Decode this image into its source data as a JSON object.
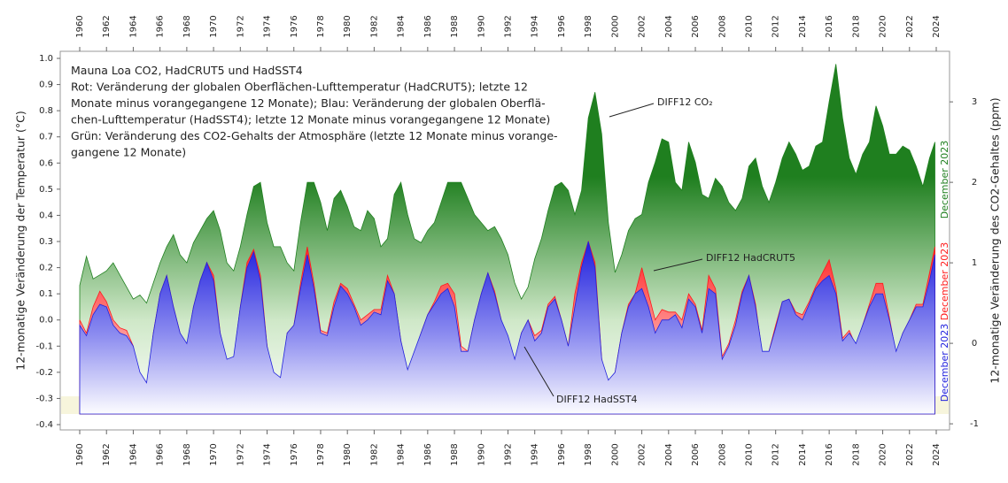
{
  "chart_data": {
    "type": "area",
    "notes": [
      "Mauna Loa CO2, HadCRUT5 und HadSST4",
      "Rot: Veränderung der globalen Oberflächen-Lufttemperatur (HadCRUT5); letzte 12",
      "Monate minus vorangegangene 12 Monate); Blau: Veränderung der globalen Oberflä-",
      "chen-Lufttemperatur (HadSST4); letzte 12 Monate minus vorangegangene 12 Monate)",
      "Grün: Veränderung des CO2-Gehalts der Atmosphäre (letzte 12 Monate minus vorange-",
      "gangene 12 Monate)"
    ],
    "ylabel": "12-monatige Veränderung der Temperatur (°C)",
    "y2label": "12-monatige Veränderung des CO2-Gehaltes (ppm)",
    "x": [
      1960,
      1960.5,
      1961,
      1961.5,
      1962,
      1962.5,
      1963,
      1963.5,
      1964,
      1964.5,
      1965,
      1965.5,
      1966,
      1966.5,
      1967,
      1967.5,
      1968,
      1968.5,
      1969,
      1969.5,
      1970,
      1970.5,
      1971,
      1971.5,
      1972,
      1972.5,
      1973,
      1973.5,
      1974,
      1974.5,
      1975,
      1975.5,
      1976,
      1976.5,
      1977,
      1977.5,
      1978,
      1978.5,
      1979,
      1979.5,
      1980,
      1980.5,
      1981,
      1981.5,
      1982,
      1982.5,
      1983,
      1983.5,
      1984,
      1984.5,
      1985,
      1985.5,
      1986,
      1986.5,
      1987,
      1987.5,
      1988,
      1988.5,
      1989,
      1989.5,
      1990,
      1990.5,
      1991,
      1991.5,
      1992,
      1992.5,
      1993,
      1993.5,
      1994,
      1994.5,
      1995,
      1995.5,
      1996,
      1996.5,
      1997,
      1997.5,
      1998,
      1998.5,
      1999,
      1999.5,
      2000,
      2000.5,
      2001,
      2001.5,
      2002,
      2002.5,
      2003,
      2003.5,
      2004,
      2004.5,
      2005,
      2005.5,
      2006,
      2006.5,
      2007,
      2007.5,
      2008,
      2008.5,
      2009,
      2009.5,
      2010,
      2010.5,
      2011,
      2011.5,
      2012,
      2012.5,
      2013,
      2013.5,
      2014,
      2014.5,
      2015,
      2015.5,
      2016,
      2016.5,
      2017,
      2017.5,
      2018,
      2018.5,
      2019,
      2019.5,
      2020,
      2020.5,
      2021,
      2021.5,
      2022,
      2022.5,
      2023,
      2023.5,
      2023.9
    ],
    "series": [
      {
        "name": "DIFF12 CO₂",
        "end_label": "December 2023",
        "color": "#1f7f1f",
        "axis": "y2",
        "values": [
          0.72,
          1.08,
          0.8,
          0.85,
          0.9,
          1.0,
          0.85,
          0.7,
          0.55,
          0.6,
          0.5,
          0.75,
          1.0,
          1.2,
          1.35,
          1.1,
          1.0,
          1.25,
          1.4,
          1.55,
          1.65,
          1.4,
          1.0,
          0.9,
          1.2,
          1.6,
          1.95,
          2.0,
          1.5,
          1.2,
          1.2,
          1.0,
          0.9,
          1.5,
          2.0,
          2.0,
          1.75,
          1.4,
          1.8,
          1.9,
          1.7,
          1.45,
          1.4,
          1.65,
          1.55,
          1.2,
          1.3,
          1.85,
          2.0,
          1.6,
          1.3,
          1.25,
          1.4,
          1.5,
          1.75,
          2.0,
          2.0,
          2.0,
          1.8,
          1.6,
          1.5,
          1.4,
          1.45,
          1.3,
          1.1,
          0.75,
          0.55,
          0.7,
          1.05,
          1.3,
          1.65,
          1.95,
          2.0,
          1.9,
          1.6,
          1.9,
          2.8,
          3.12,
          2.6,
          1.5,
          0.88,
          1.1,
          1.4,
          1.55,
          1.6,
          2.0,
          2.25,
          2.54,
          2.5,
          2.0,
          1.9,
          2.5,
          2.25,
          1.85,
          1.8,
          2.05,
          1.95,
          1.75,
          1.65,
          1.8,
          2.2,
          2.3,
          1.95,
          1.75,
          2.0,
          2.3,
          2.5,
          2.35,
          2.15,
          2.2,
          2.45,
          2.5,
          3.0,
          3.47,
          2.8,
          2.3,
          2.1,
          2.35,
          2.5,
          2.95,
          2.7,
          2.35,
          2.35,
          2.45,
          2.4,
          2.2,
          1.95,
          2.3,
          2.5
        ]
      },
      {
        "name": "DIFF12 HadCRUT5",
        "end_label": "December 2023",
        "color": "#ff1a1a",
        "values": [
          0.0,
          -0.05,
          0.05,
          0.11,
          0.07,
          0.0,
          -0.03,
          -0.04,
          -0.1,
          -0.24,
          -0.27,
          -0.05,
          0.1,
          0.17,
          0.05,
          -0.05,
          -0.1,
          0.05,
          0.15,
          0.22,
          0.17,
          -0.05,
          -0.16,
          -0.15,
          0.05,
          0.22,
          0.27,
          0.17,
          -0.1,
          -0.22,
          -0.27,
          -0.05,
          -0.02,
          0.14,
          0.28,
          0.14,
          -0.04,
          -0.05,
          0.07,
          0.14,
          0.12,
          0.06,
          0.0,
          0.02,
          0.04,
          0.04,
          0.17,
          0.1,
          -0.08,
          -0.2,
          -0.13,
          -0.05,
          0.02,
          0.07,
          0.13,
          0.14,
          0.1,
          -0.1,
          -0.12,
          0.0,
          0.1,
          0.18,
          0.11,
          0.0,
          -0.08,
          -0.16,
          -0.05,
          0.0,
          -0.06,
          -0.04,
          0.06,
          0.09,
          0.0,
          -0.1,
          0.1,
          0.22,
          0.3,
          0.22,
          -0.15,
          -0.25,
          -0.2,
          -0.05,
          0.06,
          0.1,
          0.2,
          0.1,
          0.0,
          0.04,
          0.03,
          0.03,
          0.0,
          0.1,
          0.06,
          -0.04,
          0.17,
          0.12,
          -0.14,
          -0.09,
          0.0,
          0.11,
          0.17,
          0.06,
          -0.13,
          -0.12,
          -0.02,
          0.07,
          0.08,
          0.03,
          0.02,
          0.07,
          0.13,
          0.18,
          0.23,
          0.12,
          -0.07,
          -0.04,
          -0.1,
          -0.02,
          0.06,
          0.14,
          0.14,
          0.01,
          -0.13,
          -0.05,
          0.0,
          0.06,
          0.06,
          0.18,
          0.28
        ]
      },
      {
        "name": "DIFF12 HadSST4",
        "end_label": "December 2023",
        "color": "#2222dd",
        "values": [
          -0.02,
          -0.06,
          0.02,
          0.06,
          0.05,
          -0.02,
          -0.05,
          -0.06,
          -0.1,
          -0.2,
          -0.24,
          -0.05,
          0.1,
          0.17,
          0.05,
          -0.05,
          -0.09,
          0.05,
          0.15,
          0.22,
          0.15,
          -0.05,
          -0.15,
          -0.14,
          0.05,
          0.2,
          0.26,
          0.15,
          -0.1,
          -0.2,
          -0.22,
          -0.05,
          -0.02,
          0.12,
          0.25,
          0.12,
          -0.05,
          -0.06,
          0.05,
          0.13,
          0.1,
          0.05,
          -0.02,
          0.0,
          0.03,
          0.02,
          0.15,
          0.1,
          -0.08,
          -0.19,
          -0.12,
          -0.05,
          0.02,
          0.06,
          0.1,
          0.12,
          0.05,
          -0.12,
          -0.12,
          0.0,
          0.1,
          0.18,
          0.1,
          0.0,
          -0.06,
          -0.15,
          -0.05,
          0.0,
          -0.08,
          -0.05,
          0.05,
          0.08,
          0.0,
          -0.1,
          0.05,
          0.2,
          0.3,
          0.2,
          -0.15,
          -0.23,
          -0.2,
          -0.05,
          0.05,
          0.1,
          0.12,
          0.05,
          -0.05,
          0.0,
          0.0,
          0.02,
          -0.03,
          0.08,
          0.05,
          -0.05,
          0.12,
          0.1,
          -0.15,
          -0.1,
          -0.02,
          0.1,
          0.17,
          0.05,
          -0.12,
          -0.12,
          -0.03,
          0.07,
          0.08,
          0.02,
          0.0,
          0.06,
          0.12,
          0.15,
          0.17,
          0.1,
          -0.08,
          -0.05,
          -0.09,
          -0.02,
          0.05,
          0.1,
          0.1,
          0.0,
          -0.12,
          -0.05,
          0.0,
          0.05,
          0.05,
          0.15,
          0.25
        ]
      }
    ],
    "xlim": [
      1958.5,
      2025
    ],
    "xticks": [
      1960,
      1962,
      1964,
      1966,
      1968,
      1970,
      1972,
      1974,
      1976,
      1978,
      1980,
      1982,
      1984,
      1986,
      1988,
      1990,
      1992,
      1994,
      1996,
      1998,
      2000,
      2002,
      2004,
      2006,
      2008,
      2010,
      2012,
      2014,
      2016,
      2018,
      2020,
      2022,
      2024
    ],
    "ylim": [
      -0.4,
      1.0
    ],
    "yticks": [
      -0.4,
      -0.3,
      -0.2,
      -0.1,
      {
        "value": 0,
        "label": "0.0"
      },
      0.1,
      0.2,
      0.3,
      0.4,
      0.5,
      0.6,
      0.7,
      0.8,
      0.9,
      {
        "value": 1,
        "label": "1.0"
      }
    ],
    "y2lim": [
      -1.01,
      3.54
    ],
    "y2ticks": [
      -1,
      0,
      1,
      2,
      3
    ]
  }
}
